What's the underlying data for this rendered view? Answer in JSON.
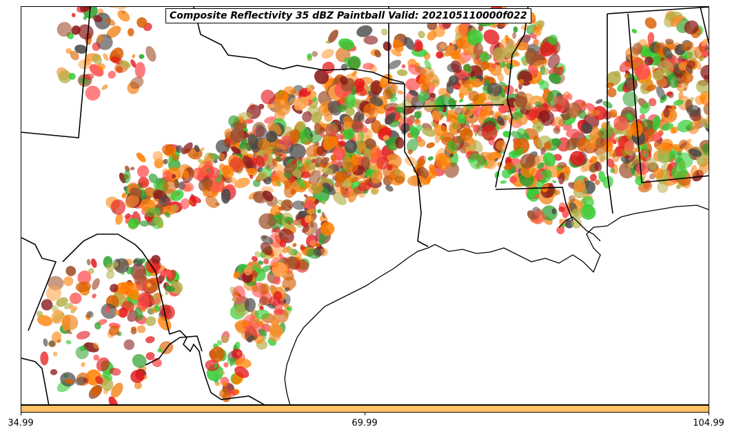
{
  "title": "Composite Reflectivity 35 dBZ Paintball Valid: 202105110000f022",
  "colorbar": {
    "color": "#ffc266",
    "ticks": [
      "34.99",
      "69.99",
      "104.99"
    ]
  },
  "palette": [
    "#e41a1c",
    "#ff7f00",
    "#f28c28",
    "#d95f02",
    "#8b1a1a",
    "#a0522d",
    "#2ca02c",
    "#33cc33",
    "#b5b04a",
    "#ff4d4d",
    "#ffa64d",
    "#4a4a4a"
  ]
}
